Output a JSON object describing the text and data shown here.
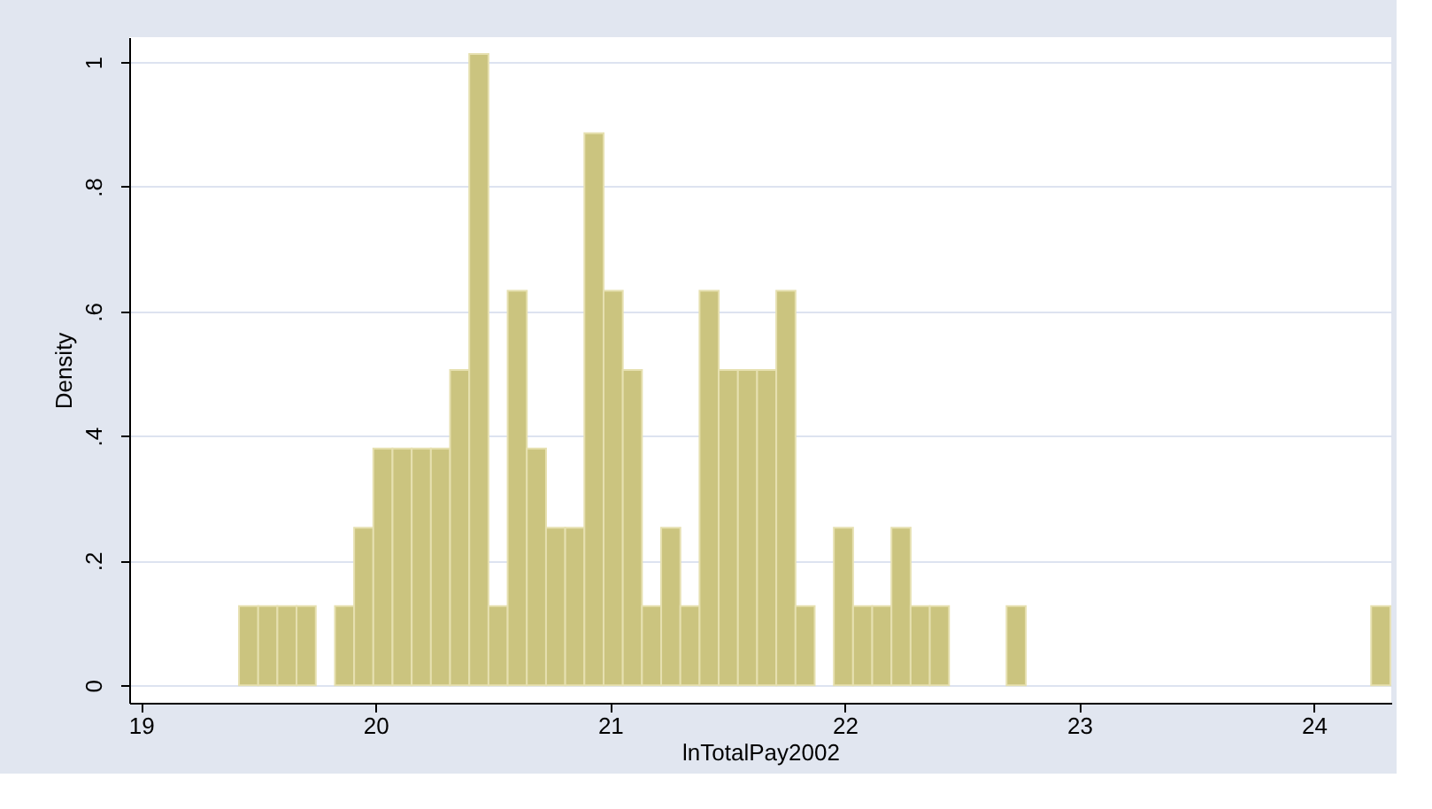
{
  "chart_data": {
    "type": "histogram",
    "xlabel": "lnTotalPay2002",
    "ylabel": "Density",
    "bins": [
      19.418,
      19.4998,
      19.5816,
      19.6634,
      19.7452,
      19.827,
      19.9088,
      19.9906,
      20.0724,
      20.1542,
      20.236,
      20.3178,
      20.3996,
      20.4814,
      20.5632,
      20.645,
      20.7268,
      20.8086,
      20.8904,
      20.9722,
      21.054,
      21.1358,
      21.2176,
      21.2994,
      21.3812,
      21.463,
      21.5448,
      21.6266,
      21.7084,
      21.7902,
      21.872,
      21.9538,
      22.0356,
      22.1174,
      22.1992,
      22.281,
      22.3628,
      22.4446,
      22.5264,
      22.6082,
      22.69,
      22.7718,
      22.8536,
      22.9354,
      23.0172,
      23.099,
      23.1808,
      23.2626,
      23.3444,
      23.4262,
      23.508,
      23.5898,
      23.6716,
      23.7534,
      23.8352,
      23.917,
      23.9988,
      24.0806,
      24.1624,
      24.2442,
      24.326
    ],
    "values": [
      0.127,
      0.127,
      0.127,
      0.127,
      0,
      0.127,
      0.253,
      0.38,
      0.38,
      0.38,
      0.38,
      0.506,
      1.013,
      0.127,
      0.633,
      0.38,
      0.253,
      0.253,
      0.886,
      0.633,
      0.506,
      0.127,
      0.253,
      0.127,
      0.633,
      0.506,
      0.506,
      0.506,
      0.633,
      0.127,
      0,
      0.253,
      0.127,
      0.127,
      0.253,
      0.127,
      0.127,
      0,
      0,
      0,
      0.127,
      0,
      0,
      0,
      0,
      0,
      0,
      0,
      0,
      0,
      0,
      0,
      0,
      0,
      0,
      0,
      0,
      0,
      0,
      0.127
    ],
    "color": "#cbc47f",
    "xlim": [
      18.95,
      24.33
    ],
    "xticks": [
      19,
      20,
      21,
      22,
      23,
      24
    ],
    "ylim": [
      -0.028,
      1.04
    ],
    "yticks": [
      {
        "value": 0,
        "label": "0"
      },
      {
        "value": 0.2,
        "label": ".2"
      },
      {
        "value": 0.4,
        "label": ".4"
      },
      {
        "value": 0.6,
        "label": ".6"
      },
      {
        "value": 0.8,
        "label": ".8"
      },
      {
        "value": 1,
        "label": "1"
      }
    ],
    "grid": "y"
  }
}
